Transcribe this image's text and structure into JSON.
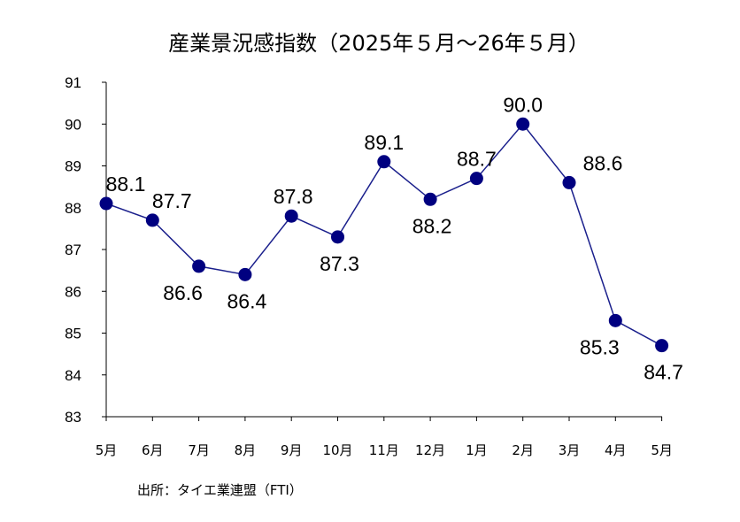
{
  "chart_data": {
    "type": "line",
    "title": "産業景況感指数（2025年５月～26年５月）",
    "categories": [
      "5月",
      "6月",
      "7月",
      "8月",
      "9月",
      "10月",
      "11月",
      "12月",
      "1月",
      "2月",
      "3月",
      "4月",
      "5月"
    ],
    "series": [
      {
        "values": [
          88.1,
          87.7,
          86.6,
          86.4,
          87.8,
          87.3,
          89.1,
          88.2,
          88.7,
          90.0,
          88.6,
          85.3,
          84.7
        ]
      }
    ],
    "data_labels": [
      "88.1",
      "87.7",
      "86.6",
      "86.4",
      "87.8",
      "87.3",
      "89.1",
      "88.2",
      "88.7",
      "90.0",
      "88.6",
      "85.3",
      "84.7"
    ],
    "ylim": [
      83,
      91
    ],
    "yticks": [
      "83",
      "84",
      "85",
      "86",
      "87",
      "88",
      "89",
      "90",
      "91"
    ],
    "xlabel": "",
    "ylabel": "",
    "grid": false,
    "legend": "none",
    "line_color": "#1a1f8c",
    "marker_color": "#000080"
  },
  "source": "出所：タイエ業連盟（FTI）"
}
